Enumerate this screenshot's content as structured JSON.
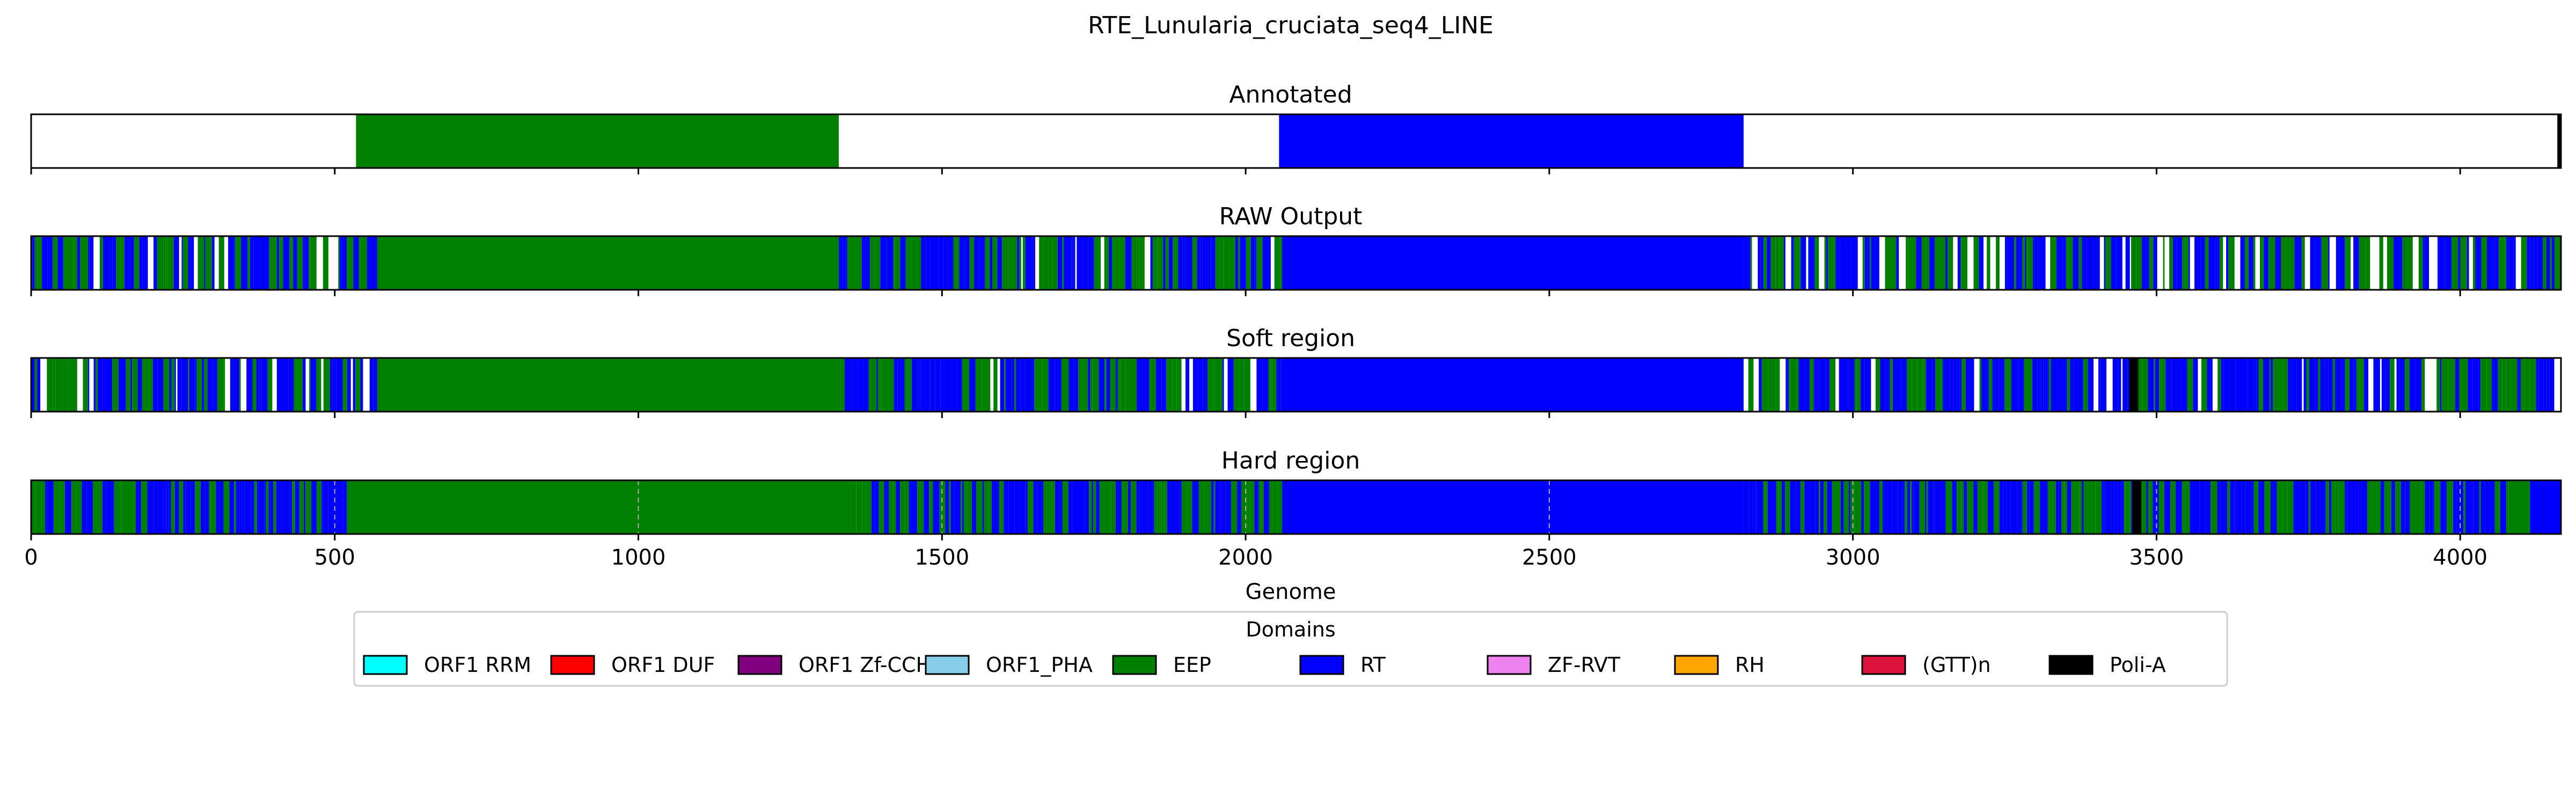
{
  "chart_data": {
    "type": "table",
    "title": "RTE_Lunularia_cruciata_seq4_LINE",
    "xlabel": "Genome",
    "xlim": [
      0,
      4166
    ],
    "xticks": [
      0,
      500,
      1000,
      1500,
      2000,
      2500,
      3000,
      3500,
      4000
    ],
    "xtick_labels": [
      "0",
      "500",
      "1000",
      "1500",
      "2000",
      "2500",
      "3000",
      "3500",
      "4000"
    ],
    "colors": {
      "ORF1 RRM": "#00ffff",
      "ORF1 DUF": "#ff0000",
      "ORF1 Zf-CCHC": "#800080",
      "ORF1_PHA": "#87ceeb",
      "EEP": "#008000",
      "RT": "#0000ff",
      "ZF-RVT": "#ee82ee",
      "RH": "#ffa500",
      "(GTT)n": "#dc143c",
      "Poli-A": "#000000"
    },
    "legend": {
      "title": "Domains",
      "placement": "bottom-center",
      "entries": [
        "ORF1 RRM",
        "ORF1 DUF",
        "ORF1 Zf-CCHC",
        "ORF1_PHA",
        "EEP",
        "RT",
        "ZF-RVT",
        "RH",
        "(GTT)n",
        "Poli-A"
      ]
    },
    "panels": [
      {
        "title": "Annotated",
        "grid": false,
        "segments": [
          {
            "domain": "EEP",
            "start": 535,
            "end": 1330
          },
          {
            "domain": "RT",
            "start": 2055,
            "end": 2820
          },
          {
            "domain": "Poli-A",
            "start": 4160,
            "end": 4166
          }
        ]
      },
      {
        "title": "RAW Output",
        "grid": false,
        "mixed_regions": [
          {
            "start": 0,
            "end": 570,
            "palette": [
              "RT",
              "EEP"
            ],
            "gap_rate": 0.12
          },
          {
            "start": 1330,
            "end": 2060,
            "palette": [
              "RT",
              "EEP"
            ],
            "gap_rate": 0.1
          },
          {
            "start": 2820,
            "end": 4166,
            "palette": [
              "RT",
              "EEP"
            ],
            "gap_rate": 0.14
          }
        ],
        "segments": [
          {
            "domain": "EEP",
            "start": 570,
            "end": 1330
          },
          {
            "domain": "RT",
            "start": 2060,
            "end": 2820
          }
        ]
      },
      {
        "title": "Soft region",
        "grid": false,
        "mixed_regions": [
          {
            "start": 0,
            "end": 570,
            "palette": [
              "RT",
              "EEP"
            ],
            "gap_rate": 0.12
          },
          {
            "start": 1330,
            "end": 2060,
            "palette": [
              "RT",
              "EEP"
            ],
            "gap_rate": 0.1
          },
          {
            "start": 2820,
            "end": 4166,
            "palette": [
              "RT",
              "EEP"
            ],
            "gap_rate": 0.14
          }
        ],
        "segments": [
          {
            "domain": "EEP",
            "start": 570,
            "end": 1330
          },
          {
            "domain": "RT",
            "start": 2060,
            "end": 2820
          },
          {
            "domain": "Poli-A",
            "start": 3455,
            "end": 3470
          }
        ]
      },
      {
        "title": "Hard region",
        "grid": true,
        "mixed_regions": [
          {
            "start": 0,
            "end": 520,
            "palette": [
              "RT",
              "EEP"
            ],
            "gap_rate": 0
          },
          {
            "start": 1350,
            "end": 2060,
            "palette": [
              "RT",
              "EEP"
            ],
            "gap_rate": 0
          },
          {
            "start": 2820,
            "end": 4080,
            "palette": [
              "RT",
              "EEP"
            ],
            "gap_rate": 0
          }
        ],
        "segments": [
          {
            "domain": "EEP",
            "start": 520,
            "end": 1350
          },
          {
            "domain": "RT",
            "start": 2060,
            "end": 2820
          },
          {
            "domain": "Poli-A",
            "start": 3460,
            "end": 3475
          },
          {
            "domain": "EEP",
            "start": 4080,
            "end": 4115
          },
          {
            "domain": "RT",
            "start": 4115,
            "end": 4166
          }
        ]
      }
    ]
  }
}
